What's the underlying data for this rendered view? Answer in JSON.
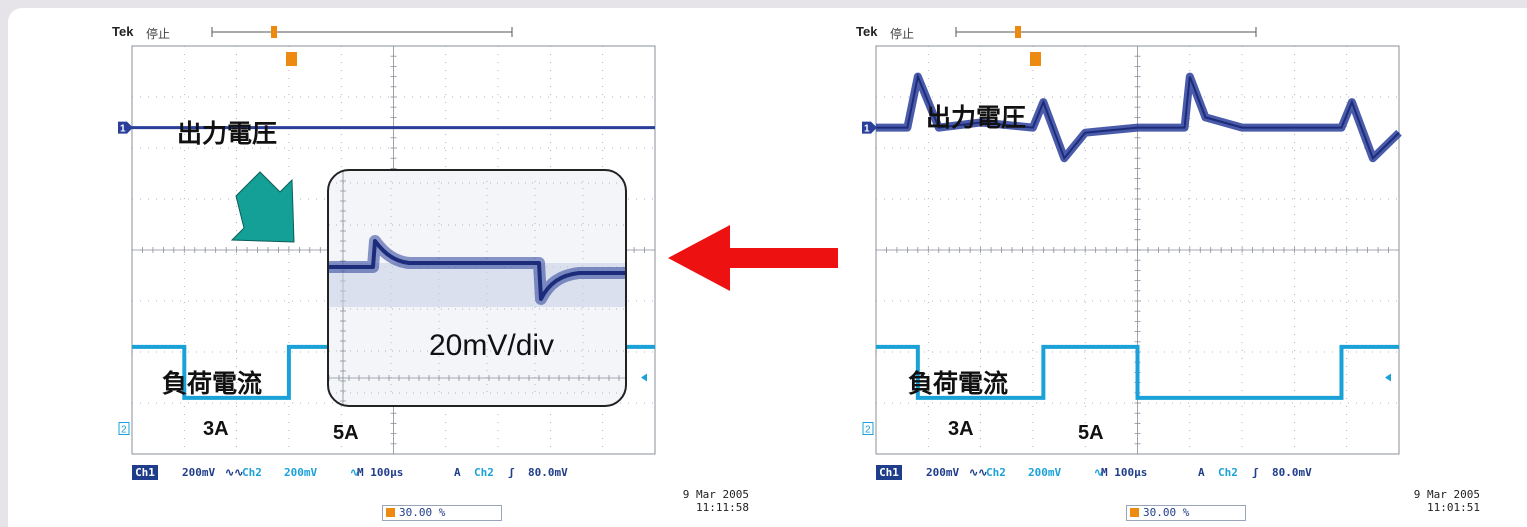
{
  "colors": {
    "ch1_trace": "#2a3f9a",
    "ch2_trace": "#1aa2d8",
    "grid": "#9a9ea8",
    "red_arrow": "#ee1111",
    "teal_arrow": "#14a096",
    "trigger_marker": "#ee8a10"
  },
  "scopes": [
    {
      "id": "left",
      "header": {
        "brand": "Tek",
        "state": "停止"
      },
      "ch1_marker": "1",
      "ch2_marker": "2",
      "trace_label_voltage": "出力電圧",
      "trace_label_current": "負荷電流",
      "level_low": "3A",
      "level_high": "5A",
      "status": {
        "ch1": "Ch1",
        "ch1_scale": "200mV",
        "ch2": "Ch2",
        "ch2_scale": "200mV",
        "timebase": "M 100µs",
        "trigger_mode": "A",
        "trigger_source": "Ch2",
        "trigger_slope": "ʃ",
        "trigger_level": "80.0mV"
      },
      "position": "30.00 %",
      "date": "9 Mar  2005",
      "time": "11:11:58",
      "inset_label": "20mV/div"
    },
    {
      "id": "right",
      "header": {
        "brand": "Tek",
        "state": "停止"
      },
      "ch1_marker": "1",
      "ch2_marker": "2",
      "trace_label_voltage": "出力電圧",
      "trace_label_current": "負荷電流",
      "level_low": "3A",
      "level_high": "5A",
      "status": {
        "ch1": "Ch1",
        "ch1_scale": "200mV",
        "ch2": "Ch2",
        "ch2_scale": "200mV",
        "timebase": "M 100µs",
        "trigger_mode": "A",
        "trigger_source": "Ch2",
        "trigger_slope": "ʃ",
        "trigger_level": "80.0mV"
      },
      "position": "30.00 %",
      "date": "9 Mar  2005",
      "time": "11:01:51"
    }
  ],
  "chart_data": [
    {
      "type": "line",
      "title": "",
      "x": [
        0,
        1,
        2,
        3,
        4,
        5,
        6,
        7,
        8,
        9,
        10
      ],
      "xlabel": "",
      "ylabel": "",
      "series": [
        {
          "name": "出力電圧",
          "values": [
            2.4,
            2.4,
            2.4,
            2.4,
            2.4,
            2.4,
            2.4,
            2.4,
            2.4,
            2.4,
            2.4
          ]
        },
        {
          "name": "負荷電流",
          "values": [
            -1.9,
            -2.9,
            -2.9,
            -1.9,
            -1.9,
            -2.9,
            -2.9,
            -1.9,
            -1.9,
            -1.9,
            -1.9
          ]
        }
      ],
      "xlim": [
        0,
        10
      ],
      "ylim": [
        -4,
        4
      ],
      "grid": true
    },
    {
      "type": "line",
      "title": "",
      "x": [
        0,
        0.6,
        0.8,
        1.2,
        2,
        3,
        3.2,
        3.6,
        4,
        5,
        5.9,
        6,
        6.3,
        7,
        8,
        8.9,
        9.1,
        9.5,
        10
      ],
      "xlabel": "",
      "ylabel": "",
      "series": [
        {
          "name": "出力電圧",
          "values": [
            2.4,
            2.4,
            3.4,
            2.4,
            2.5,
            2.4,
            2.9,
            1.8,
            2.3,
            2.4,
            2.4,
            3.4,
            2.6,
            2.4,
            2.4,
            2.4,
            2.9,
            1.8,
            2.3
          ]
        },
        {
          "name": "負荷電流",
          "values": [
            -1.9,
            -1.9,
            -2.9,
            -2.9,
            -2.9,
            -2.9,
            -1.9,
            -1.9,
            -1.9,
            -2.9,
            -2.9,
            -2.9,
            -2.9,
            -2.9,
            -2.9,
            -1.9,
            -1.9,
            -1.9,
            -1.9
          ]
        }
      ],
      "xlim": [
        0,
        10
      ],
      "ylim": [
        -4,
        4
      ],
      "grid": true
    }
  ]
}
